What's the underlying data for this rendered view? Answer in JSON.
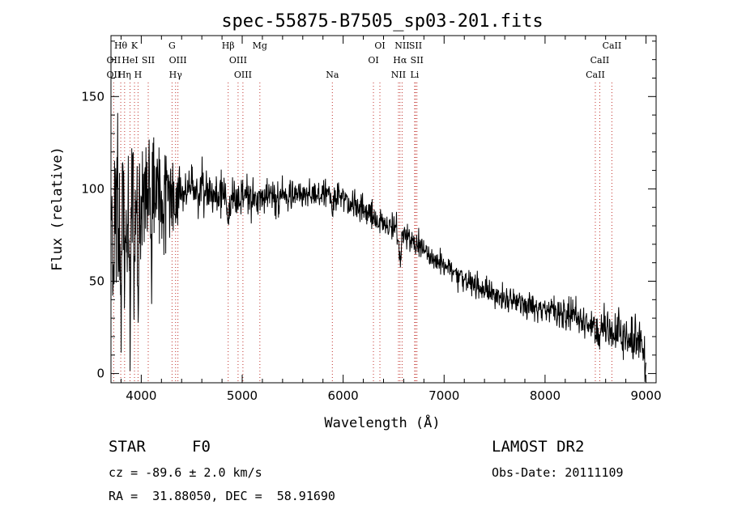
{
  "info": {
    "object_type": "STAR",
    "subclass": "F0",
    "survey": "LAMOST DR2",
    "redshift": "cz = -89.6 ± 2.0 km/s",
    "obs_date": "Obs-Date: 20111109",
    "coords": "RA =  31.88050, DEC =  58.91690"
  },
  "chart_data": {
    "type": "line",
    "title": "spec-55875-B7505_sp03-201.fits",
    "xlabel": "Wavelength (Å)",
    "ylabel": "Flux (relative)",
    "xlim": [
      3700,
      9100
    ],
    "ylim": [
      -5,
      183
    ],
    "xticks": [
      4000,
      5000,
      6000,
      7000,
      8000,
      9000
    ],
    "yticks": [
      0,
      50,
      100,
      150
    ],
    "grid": false,
    "line_color": "#000000",
    "marker_color": "#c0302a",
    "continuum": [
      [
        3700,
        78
      ],
      [
        3800,
        88
      ],
      [
        3900,
        96
      ],
      [
        4000,
        100
      ],
      [
        4100,
        98
      ],
      [
        4300,
        96
      ],
      [
        4500,
        100
      ],
      [
        4700,
        98
      ],
      [
        4900,
        96
      ],
      [
        5200,
        95
      ],
      [
        5500,
        96
      ],
      [
        5700,
        96
      ],
      [
        5900,
        98
      ],
      [
        6000,
        94
      ],
      [
        6200,
        88
      ],
      [
        6400,
        82
      ],
      [
        6500,
        79
      ],
      [
        6700,
        71
      ],
      [
        6900,
        62
      ],
      [
        7100,
        55
      ],
      [
        7300,
        48
      ],
      [
        7500,
        43
      ],
      [
        7700,
        39
      ],
      [
        8000,
        34
      ],
      [
        8300,
        30
      ],
      [
        8600,
        25
      ],
      [
        8800,
        20
      ],
      [
        9000,
        17
      ]
    ],
    "noise_sigma": [
      [
        3700,
        25
      ],
      [
        3950,
        22
      ],
      [
        4100,
        18
      ],
      [
        4300,
        10
      ],
      [
        4500,
        7
      ],
      [
        5000,
        5
      ],
      [
        6000,
        4
      ],
      [
        7000,
        3.5
      ],
      [
        8000,
        3.5
      ],
      [
        8700,
        6
      ],
      [
        9000,
        8
      ]
    ],
    "absorption_lines": [
      [
        3797,
        45
      ],
      [
        3835,
        35
      ],
      [
        3889,
        65
      ],
      [
        3933,
        40
      ],
      [
        3968,
        55
      ],
      [
        4101,
        25
      ],
      [
        4340,
        15
      ],
      [
        4861,
        15
      ],
      [
        5890,
        8
      ],
      [
        6563,
        18
      ],
      [
        8498,
        4
      ],
      [
        8542,
        8
      ],
      [
        8662,
        5
      ],
      [
        8990,
        12
      ]
    ],
    "line_markers": [
      {
        "label": "Hθ",
        "x": 3797,
        "row": 0
      },
      {
        "label": "K",
        "x": 3933,
        "row": 0
      },
      {
        "label": "G",
        "x": 4305,
        "row": 0
      },
      {
        "label": "Hβ",
        "x": 4861,
        "row": 0
      },
      {
        "label": "Mg",
        "x": 5175,
        "row": 0
      },
      {
        "label": "OI",
        "x": 6364,
        "row": 0
      },
      {
        "label": "NII",
        "x": 6584,
        "row": 0
      },
      {
        "label": "SII",
        "x": 6717,
        "row": 0
      },
      {
        "label": "CaII",
        "x": 8662,
        "row": 0
      },
      {
        "label": "OII",
        "x": 3727,
        "row": 1
      },
      {
        "label": "HeI",
        "x": 3889,
        "row": 1
      },
      {
        "label": "SII",
        "x": 4069,
        "row": 1
      },
      {
        "label": "OIII",
        "x": 4363,
        "row": 1
      },
      {
        "label": "OIII",
        "x": 4959,
        "row": 1
      },
      {
        "label": "OI",
        "x": 6300,
        "row": 1
      },
      {
        "label": "Hα",
        "x": 6563,
        "row": 1
      },
      {
        "label": "SII",
        "x": 6731,
        "row": 1
      },
      {
        "label": "CaII",
        "x": 8542,
        "row": 1
      },
      {
        "label": "OII",
        "x": 3727,
        "row": 2
      },
      {
        "label": "Hη",
        "x": 3835,
        "row": 2
      },
      {
        "label": "H",
        "x": 3968,
        "row": 2
      },
      {
        "label": "Hγ",
        "x": 4340,
        "row": 2
      },
      {
        "label": "OIII",
        "x": 5007,
        "row": 2
      },
      {
        "label": "Na",
        "x": 5893,
        "row": 2
      },
      {
        "label": "NII",
        "x": 6548,
        "row": 2
      },
      {
        "label": "Li",
        "x": 6708,
        "row": 2
      },
      {
        "label": "CaII",
        "x": 8498,
        "row": 2
      }
    ]
  }
}
